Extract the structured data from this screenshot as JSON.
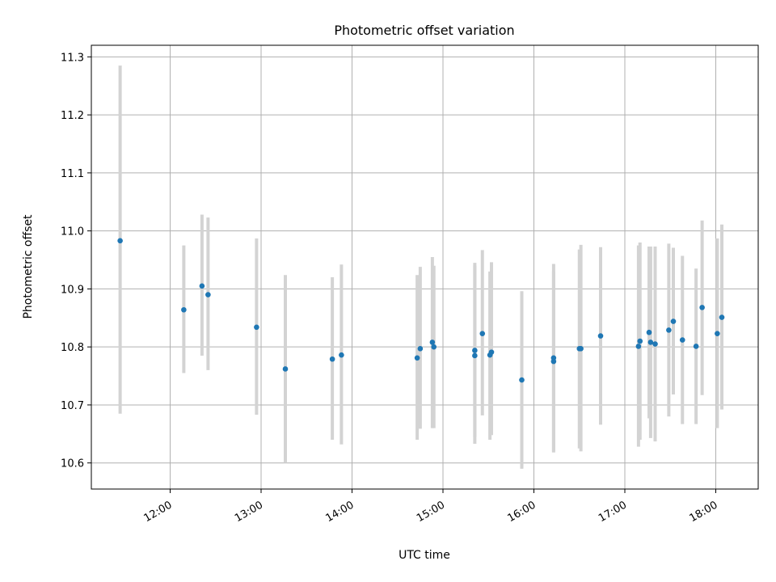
{
  "chart_data": {
    "type": "scatter",
    "title": "Photometric offset variation",
    "xlabel": "UTC time",
    "ylabel": "Photometric offset",
    "x_unit": "UTC",
    "xlim": [
      "11:08",
      "18:28"
    ],
    "ylim": [
      10.555,
      11.32
    ],
    "grid": true,
    "xticks": [
      "12:00",
      "13:00",
      "14:00",
      "15:00",
      "16:00",
      "17:00",
      "18:00"
    ],
    "yticks": [
      10.6,
      10.7,
      10.8,
      10.9,
      11.0,
      11.1,
      11.2,
      11.3
    ],
    "ytick_labels": [
      "10.6",
      "10.7",
      "10.8",
      "10.9",
      "11.0",
      "11.1",
      "11.2",
      "11.3"
    ],
    "colors": {
      "point": "#1f77b4",
      "errorbar": "#d3d3d3"
    },
    "points": [
      {
        "x": "11:27",
        "y": 10.983,
        "err_low": 10.685,
        "err_high": 11.285
      },
      {
        "x": "12:09",
        "y": 10.864,
        "err_low": 10.755,
        "err_high": 10.975
      },
      {
        "x": "12:21",
        "y": 10.905,
        "err_low": 10.785,
        "err_high": 11.028
      },
      {
        "x": "12:25",
        "y": 10.89,
        "err_low": 10.76,
        "err_high": 11.023
      },
      {
        "x": "12:57",
        "y": 10.834,
        "err_low": 10.683,
        "err_high": 10.987
      },
      {
        "x": "13:16",
        "y": 10.762,
        "err_low": 10.6,
        "err_high": 10.924
      },
      {
        "x": "13:47",
        "y": 10.779,
        "err_low": 10.64,
        "err_high": 10.92
      },
      {
        "x": "13:53",
        "y": 10.786,
        "err_low": 10.632,
        "err_high": 10.942
      },
      {
        "x": "14:43",
        "y": 10.781,
        "err_low": 10.64,
        "err_high": 10.924
      },
      {
        "x": "14:45",
        "y": 10.797,
        "err_low": 10.659,
        "err_high": 10.938
      },
      {
        "x": "14:53",
        "y": 10.808,
        "err_low": 10.66,
        "err_high": 10.955
      },
      {
        "x": "14:54",
        "y": 10.8,
        "err_low": 10.66,
        "err_high": 10.94
      },
      {
        "x": "15:21",
        "y": 10.794,
        "err_low": 10.645,
        "err_high": 10.945
      },
      {
        "x": "15:21",
        "y": 10.785,
        "err_low": 10.633,
        "err_high": 10.94
      },
      {
        "x": "15:26",
        "y": 10.823,
        "err_low": 10.682,
        "err_high": 10.967
      },
      {
        "x": "15:31",
        "y": 10.786,
        "err_low": 10.64,
        "err_high": 10.93
      },
      {
        "x": "15:32",
        "y": 10.791,
        "err_low": 10.648,
        "err_high": 10.946
      },
      {
        "x": "15:52",
        "y": 10.743,
        "err_low": 10.59,
        "err_high": 10.896
      },
      {
        "x": "16:13",
        "y": 10.781,
        "err_low": 10.618,
        "err_high": 10.943
      },
      {
        "x": "16:13",
        "y": 10.775,
        "err_low": 10.62,
        "err_high": 10.93
      },
      {
        "x": "16:30",
        "y": 10.797,
        "err_low": 10.625,
        "err_high": 10.968
      },
      {
        "x": "16:31",
        "y": 10.797,
        "err_low": 10.62,
        "err_high": 10.976
      },
      {
        "x": "16:44",
        "y": 10.819,
        "err_low": 10.666,
        "err_high": 10.972
      },
      {
        "x": "17:09",
        "y": 10.801,
        "err_low": 10.628,
        "err_high": 10.975
      },
      {
        "x": "17:10",
        "y": 10.81,
        "err_low": 10.64,
        "err_high": 10.98
      },
      {
        "x": "17:16",
        "y": 10.825,
        "err_low": 10.677,
        "err_high": 10.973
      },
      {
        "x": "17:17",
        "y": 10.808,
        "err_low": 10.643,
        "err_high": 10.973
      },
      {
        "x": "17:20",
        "y": 10.805,
        "err_low": 10.637,
        "err_high": 10.973
      },
      {
        "x": "17:29",
        "y": 10.829,
        "err_low": 10.68,
        "err_high": 10.978
      },
      {
        "x": "17:32",
        "y": 10.844,
        "err_low": 10.718,
        "err_high": 10.971
      },
      {
        "x": "17:38",
        "y": 10.812,
        "err_low": 10.667,
        "err_high": 10.957
      },
      {
        "x": "17:47",
        "y": 10.801,
        "err_low": 10.667,
        "err_high": 10.935
      },
      {
        "x": "17:51",
        "y": 10.868,
        "err_low": 10.717,
        "err_high": 11.018
      },
      {
        "x": "18:01",
        "y": 10.823,
        "err_low": 10.66,
        "err_high": 10.987
      },
      {
        "x": "18:04",
        "y": 10.851,
        "err_low": 10.692,
        "err_high": 11.011
      }
    ]
  }
}
